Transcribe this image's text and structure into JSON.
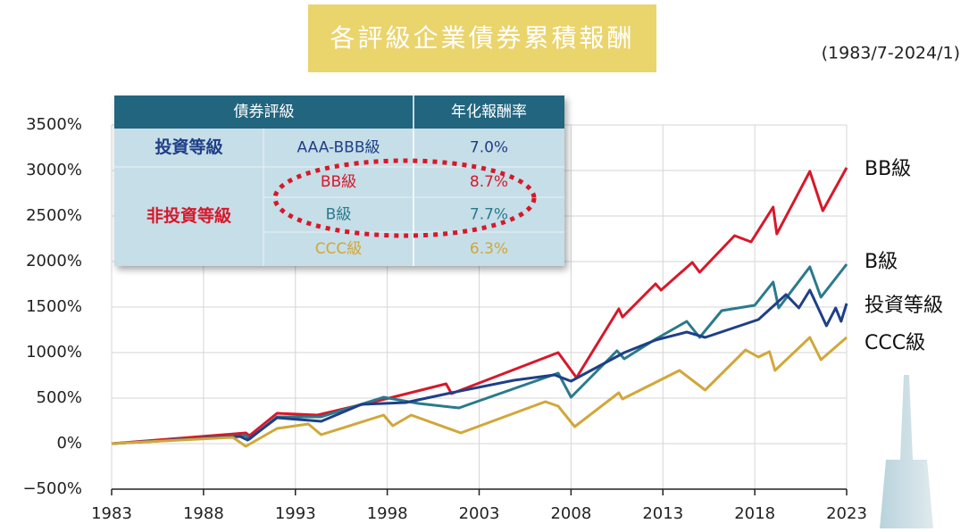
{
  "chart_data": {
    "type": "line",
    "title": "各評級企業債券累積報酬",
    "subtitle": "(1983/7-2024/1)",
    "xlim": [
      1983,
      2023
    ],
    "xticks": [
      1983,
      1988,
      1993,
      1998,
      2003,
      2008,
      2013,
      2018,
      2023
    ],
    "ylim": [
      -500,
      3500
    ],
    "yticks": [
      {
        "value": -500,
        "label": "−500%"
      },
      {
        "value": 0,
        "label": "0%"
      },
      {
        "value": 500,
        "label": "500%"
      },
      {
        "value": 1000,
        "label": "1000%"
      },
      {
        "value": 1500,
        "label": "1500%"
      },
      {
        "value": 2000,
        "label": "2000%"
      },
      {
        "value": 2500,
        "label": "2500%"
      },
      {
        "value": 3000,
        "label": "3000%"
      },
      {
        "value": 3500,
        "label": "3500%"
      }
    ],
    "grid": true,
    "series": [
      {
        "name": "BB級",
        "color": "#d7182a",
        "x": [
          1983,
          1990.3,
          1990.5,
          1992,
          1994.2,
          1998.1,
          2001.2,
          2001.5,
          2007.3,
          2008.3,
          2010.6,
          2010.8,
          2012.6,
          2012.9,
          2014.6,
          2015,
          2016.9,
          2017.8,
          2019,
          2019.2,
          2021,
          2021.7,
          2023
        ],
        "values": [
          0,
          118,
          88,
          333,
          314,
          500,
          657,
          549,
          1000,
          725,
          1480,
          1390,
          1755,
          1686,
          1990,
          1882,
          2284,
          2216,
          2598,
          2304,
          2990,
          2558,
          3030
        ]
      },
      {
        "name": "B級",
        "color": "#2a7a8c",
        "x": [
          1983,
          1990.3,
          1990.5,
          1992,
          1994.4,
          1997.8,
          1999.7,
          2001.9,
          2007.3,
          2008,
          2010.5,
          2010.9,
          2012.6,
          2014.3,
          2015,
          2016.2,
          2018,
          2019,
          2019.3,
          2021,
          2021.6,
          2023
        ],
        "values": [
          0,
          88,
          49,
          294,
          294,
          510,
          441,
          392,
          775,
          510,
          1020,
          931,
          1147,
          1343,
          1167,
          1461,
          1520,
          1775,
          1490,
          1941,
          1608,
          1971
        ]
      },
      {
        "name": "投資等級",
        "color": "#1f3f87",
        "x": [
          1983,
          1990,
          1990.4,
          1992,
          1994.4,
          1996.6,
          1999,
          2001.5,
          2004.9,
          2007.1,
          2008,
          2010.9,
          2012.6,
          2014.3,
          2015.3,
          2018.2,
          2019.7,
          2020.4,
          2021,
          2021.9,
          2022.4,
          2022.7,
          2023
        ],
        "values": [
          0,
          78,
          39,
          284,
          245,
          431,
          451,
          559,
          696,
          755,
          686,
          1000,
          1137,
          1225,
          1167,
          1363,
          1637,
          1490,
          1686,
          1294,
          1490,
          1343,
          1539
        ]
      },
      {
        "name": "CCC級",
        "color": "#d1a73a",
        "x": [
          1983,
          1989.6,
          1990.3,
          1992,
          1993.7,
          1994.4,
          1997.8,
          1998.3,
          1999.3,
          2002,
          2006.6,
          2007.3,
          2008.2,
          2010.6,
          2010.8,
          2013.9,
          2015.3,
          2017.5,
          2018.2,
          2018.8,
          2019.1,
          2021,
          2021.6,
          2023
        ],
        "values": [
          0,
          69,
          -29,
          167,
          216,
          98,
          314,
          196,
          314,
          118,
          461,
          412,
          186,
          559,
          490,
          804,
          588,
          1029,
          951,
          1010,
          804,
          1167,
          922,
          1167
        ]
      }
    ]
  },
  "table": {
    "header": [
      "債券評級",
      "年化報酬率"
    ],
    "groups": [
      {
        "label": "投資等級",
        "color": "#1f3f87",
        "rows": [
          {
            "rating": "AAA-BBB級",
            "return": "7.0%",
            "color": "#1f3f87"
          }
        ]
      },
      {
        "label": "非投資等級",
        "color": "#d7182a",
        "rows": [
          {
            "rating": "BB級",
            "return": "8.7%",
            "color": "#d7182a"
          },
          {
            "rating": "B級",
            "return": "7.7%",
            "color": "#2a7a8c"
          },
          {
            "rating": "CCC級",
            "return": "6.3%",
            "color": "#d1a73a"
          }
        ]
      }
    ]
  }
}
